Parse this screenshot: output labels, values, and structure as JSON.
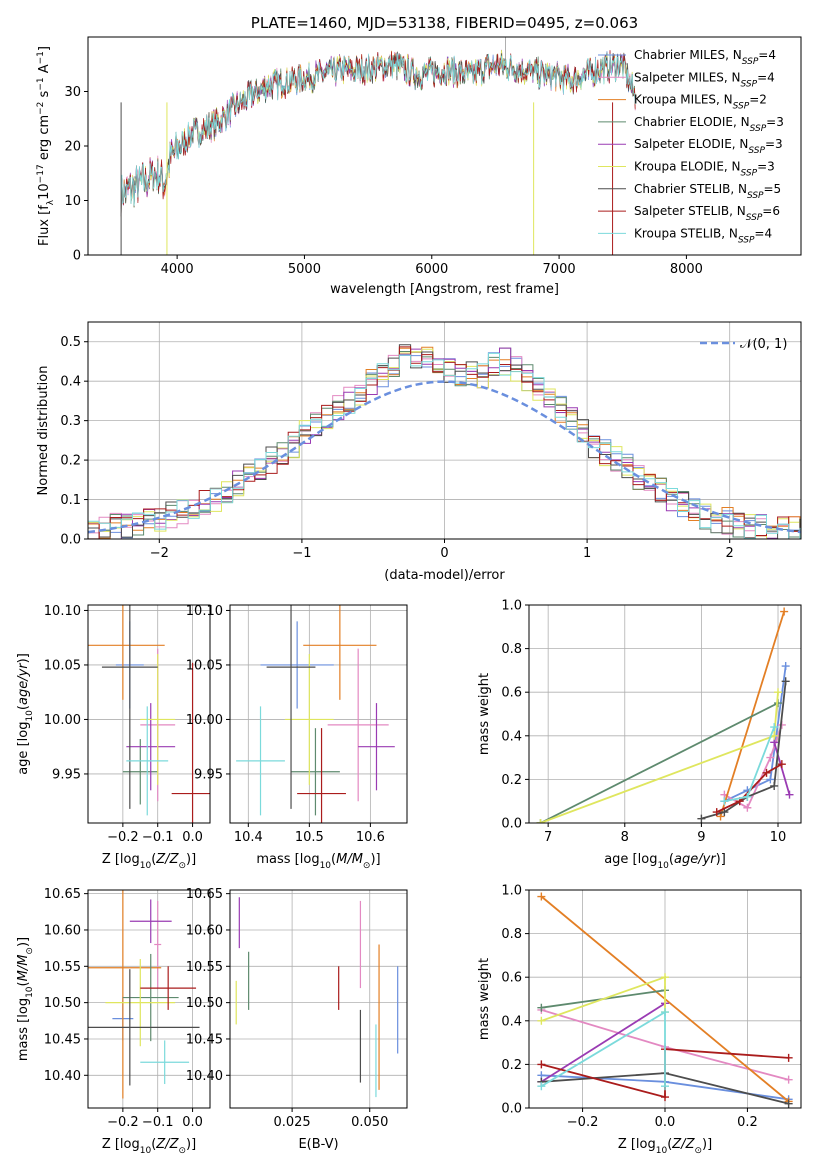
{
  "colors": [
    "#6a8fde",
    "#e389c2",
    "#e37f25",
    "#5e8a6e",
    "#9a3bb3",
    "#dfe65e",
    "#4d4d4d",
    "#aa1c1c",
    "#7bdadb"
  ],
  "chart_data": [
    {
      "type": "line",
      "title": "PLATE=1460, MJD=53138, FIBERID=0495, z=0.063",
      "xlabel": "wavelength [Angstrom, rest frame]",
      "ylabel": "Flux [fλ10⁻¹⁷ erg cm⁻² s⁻¹ A⁻¹]",
      "xlim": [
        3300,
        8900
      ],
      "ylim": [
        0,
        40
      ],
      "xticks": [
        4000,
        5000,
        6000,
        7000,
        8000
      ],
      "yticks": [
        0,
        10,
        20,
        30
      ],
      "legend_position": "right",
      "continuum": {
        "x": [
          3560,
          3700,
          3850,
          3900,
          3950,
          4100,
          4300,
          4500,
          4700,
          4900,
          5100,
          5300,
          5500,
          5700,
          5900,
          6100,
          6300,
          6500,
          6700,
          6900,
          7100,
          7300,
          7500,
          7600
        ],
        "y": [
          11,
          13,
          15,
          13,
          18,
          22,
          24,
          28,
          31,
          32,
          33,
          34,
          34,
          35,
          33,
          34,
          33,
          35,
          34,
          33,
          32,
          34,
          35,
          29
        ]
      },
      "series": [
        {
          "name": "Chabrier MILES, N",
          "sub": "SSP",
          "suffix": "=4"
        },
        {
          "name": "Salpeter MILES, N",
          "sub": "SSP",
          "suffix": "=4"
        },
        {
          "name": "Kroupa MILES, N",
          "sub": "SSP",
          "suffix": "=2"
        },
        {
          "name": "Chabrier ELODIE, N",
          "sub": "SSP",
          "suffix": "=3"
        },
        {
          "name": "Salpeter ELODIE, N",
          "sub": "SSP",
          "suffix": "=3"
        },
        {
          "name": "Kroupa ELODIE, N",
          "sub": "SSP",
          "suffix": "=3"
        },
        {
          "name": "Chabrier STELIB, N",
          "sub": "SSP",
          "suffix": "=5"
        },
        {
          "name": "Salpeter STELIB, N",
          "sub": "SSP",
          "suffix": "=6"
        },
        {
          "name": "Kroupa STELIB, N",
          "sub": "SSP",
          "suffix": "=4"
        }
      ]
    },
    {
      "type": "histogram",
      "xlabel": "(data-model)/error",
      "ylabel": "Normed distribution",
      "xlim": [
        -2.5,
        2.5
      ],
      "ylim": [
        0,
        0.55
      ],
      "xticks": [
        -2,
        -1,
        0,
        1,
        2
      ],
      "yticks": [
        0.0,
        0.1,
        0.2,
        0.3,
        0.4,
        0.5
      ],
      "reference_curve": {
        "name": "𝒩(0, 1)",
        "mean": 0,
        "sigma": 1
      },
      "bin_width": 0.1,
      "bin_start": -2.5,
      "envelope": [
        0.02,
        0.025,
        0.03,
        0.035,
        0.04,
        0.045,
        0.05,
        0.06,
        0.07,
        0.075,
        0.09,
        0.1,
        0.12,
        0.14,
        0.16,
        0.18,
        0.2,
        0.22,
        0.24,
        0.27,
        0.29,
        0.31,
        0.33,
        0.35,
        0.37,
        0.4,
        0.42,
        0.44,
        0.46,
        0.45,
        0.47,
        0.44,
        0.43,
        0.41,
        0.42,
        0.41,
        0.44,
        0.45,
        0.43,
        0.41,
        0.38,
        0.35,
        0.33,
        0.3,
        0.27,
        0.24,
        0.22,
        0.2,
        0.18,
        0.16,
        0.14,
        0.12,
        0.1,
        0.09,
        0.07,
        0.06,
        0.05,
        0.045,
        0.04,
        0.035,
        0.03,
        0.028,
        0.025,
        0.022,
        0.02
      ]
    },
    {
      "type": "scatter",
      "xlabel": "Z [log10(Z/Z⊙)]",
      "ylabel": "age  [log10(age/yr)]",
      "xlim": [
        -0.3,
        0.05
      ],
      "ylim": [
        9.905,
        10.105
      ],
      "xticks": [
        -0.2,
        -0.1,
        0.0
      ],
      "yticks": [
        9.95,
        10.0,
        10.05,
        10.1
      ],
      "points": [
        {
          "x": -0.18,
          "y": 10.05,
          "ex": 0.04,
          "ey": 0.04
        },
        {
          "x": -0.1,
          "y": 9.995,
          "ex": 0.05,
          "ey": 0.07
        },
        {
          "x": -0.2,
          "y": 10.068,
          "ex": 0.12,
          "ey": 0.05
        },
        {
          "x": -0.15,
          "y": 9.952,
          "ex": 0.05,
          "ey": 0.03
        },
        {
          "x": -0.12,
          "y": 9.975,
          "ex": 0.07,
          "ey": 0.04
        },
        {
          "x": -0.1,
          "y": 10.0,
          "ex": 0.05,
          "ey": 0.06
        },
        {
          "x": -0.18,
          "y": 10.048,
          "ex": 0.08,
          "ey": 0.13
        },
        {
          "x": 0.0,
          "y": 9.932,
          "ex": 0.06,
          "ey": 0.12
        },
        {
          "x": -0.13,
          "y": 9.962,
          "ex": 0.06,
          "ey": 0.05
        }
      ]
    },
    {
      "type": "scatter",
      "xlabel": "mass [log10(M/M⊙)]",
      "xlim": [
        10.37,
        10.66
      ],
      "ylim": [
        9.905,
        10.105
      ],
      "xticks": [
        10.4,
        10.5,
        10.6
      ],
      "yticks": [
        9.95,
        10.0,
        10.05,
        10.1
      ],
      "points": [
        {
          "x": 10.48,
          "y": 10.05,
          "ex": 0.06,
          "ey": 0.04
        },
        {
          "x": 10.58,
          "y": 9.995,
          "ex": 0.05,
          "ey": 0.07
        },
        {
          "x": 10.55,
          "y": 10.068,
          "ex": 0.06,
          "ey": 0.05
        },
        {
          "x": 10.51,
          "y": 9.952,
          "ex": 0.04,
          "ey": 0.04
        },
        {
          "x": 10.61,
          "y": 9.975,
          "ex": 0.03,
          "ey": 0.04
        },
        {
          "x": 10.5,
          "y": 10.0,
          "ex": 0.04,
          "ey": 0.06
        },
        {
          "x": 10.47,
          "y": 10.048,
          "ex": 0.04,
          "ey": 0.13
        },
        {
          "x": 10.52,
          "y": 9.932,
          "ex": 0.04,
          "ey": 0.06
        },
        {
          "x": 10.42,
          "y": 9.962,
          "ex": 0.04,
          "ey": 0.05
        }
      ]
    },
    {
      "type": "line",
      "xlabel": "age  [log10(age/yr)]",
      "ylabel": "mass weight",
      "xlim": [
        6.75,
        10.3
      ],
      "ylim": [
        0,
        1.0
      ],
      "xticks": [
        7,
        8,
        9,
        10
      ],
      "yticks": [
        0.0,
        0.2,
        0.4,
        0.6,
        0.8,
        1.0
      ],
      "series": [
        {
          "x": [
            9.3,
            9.6,
            9.9,
            10.1
          ],
          "y": [
            0.1,
            0.15,
            0.2,
            0.72
          ]
        },
        {
          "x": [
            9.3,
            9.6,
            9.9,
            10.05
          ],
          "y": [
            0.13,
            0.07,
            0.3,
            0.45
          ]
        },
        {
          "x": [
            9.25,
            10.08
          ],
          "y": [
            0.03,
            0.97
          ]
        },
        {
          "x": [
            6.9,
            10.0
          ],
          "y": [
            0.0,
            0.55
          ]
        },
        {
          "x": [
            9.95,
            10.15
          ],
          "y": [
            0.37,
            0.13
          ]
        },
        {
          "x": [
            6.9,
            9.95,
            10.0
          ],
          "y": [
            0.0,
            0.4,
            0.6
          ]
        },
        {
          "x": [
            9.0,
            9.3,
            9.6,
            9.95,
            10.1
          ],
          "y": [
            0.02,
            0.05,
            0.12,
            0.17,
            0.65
          ]
        },
        {
          "x": [
            9.2,
            9.5,
            9.85,
            10.05
          ],
          "y": [
            0.05,
            0.1,
            0.23,
            0.27
          ]
        },
        {
          "x": [
            9.3,
            9.6,
            9.95
          ],
          "y": [
            0.1,
            0.12,
            0.44
          ]
        }
      ]
    },
    {
      "type": "scatter",
      "xlabel": "Z [log10(Z/Z⊙)]",
      "ylabel": "mass [log10(M/M⊙)]",
      "xlim": [
        -0.3,
        0.05
      ],
      "ylim": [
        10.355,
        10.655
      ],
      "xticks": [
        -0.2,
        -0.1,
        0.0
      ],
      "yticks": [
        10.4,
        10.45,
        10.5,
        10.55,
        10.6,
        10.65
      ],
      "points": [
        {
          "x": -0.2,
          "y": 10.478,
          "ex": 0.03,
          "ey": 0.03
        },
        {
          "x": -0.1,
          "y": 10.58,
          "ex": 0.01,
          "ey": 0.06
        },
        {
          "x": -0.2,
          "y": 10.548,
          "ex": 0.11,
          "ey": 0.18
        },
        {
          "x": -0.12,
          "y": 10.507,
          "ex": 0.08,
          "ey": 0.06
        },
        {
          "x": -0.12,
          "y": 10.612,
          "ex": 0.06,
          "ey": 0.03
        },
        {
          "x": -0.15,
          "y": 10.5,
          "ex": 0.1,
          "ey": 0.06
        },
        {
          "x": -0.18,
          "y": 10.466,
          "ex": 0.2,
          "ey": 0.08
        },
        {
          "x": -0.07,
          "y": 10.52,
          "ex": 0.08,
          "ey": 0.03
        },
        {
          "x": -0.08,
          "y": 10.418,
          "ex": 0.07,
          "ey": 0.03
        }
      ]
    },
    {
      "type": "scatter",
      "xlabel": "E(B-V)",
      "xlim": [
        0.005,
        0.062
      ],
      "ylim": [
        10.355,
        10.655
      ],
      "xticks": [
        0.025,
        0.05
      ],
      "yticks": [
        10.4,
        10.45,
        10.5,
        10.55,
        10.6,
        10.65
      ],
      "points": [
        {
          "x": 0.059,
          "y": 10.49,
          "ey": 0.06
        },
        {
          "x": 0.047,
          "y": 10.58,
          "ey": 0.06
        },
        {
          "x": 0.053,
          "y": 10.48,
          "ey": 0.1
        },
        {
          "x": 0.011,
          "y": 10.53,
          "ey": 0.04
        },
        {
          "x": 0.008,
          "y": 10.61,
          "ey": 0.035
        },
        {
          "x": 0.007,
          "y": 10.5,
          "ey": 0.03
        },
        {
          "x": 0.047,
          "y": 10.44,
          "ey": 0.05
        },
        {
          "x": 0.04,
          "y": 10.52,
          "ey": 0.03
        },
        {
          "x": 0.052,
          "y": 10.42,
          "ey": 0.05
        }
      ]
    },
    {
      "type": "line",
      "xlabel": "Z [log10(Z/Z⊙)]",
      "ylabel": "mass weight",
      "xlim": [
        -0.33,
        0.33
      ],
      "ylim": [
        0,
        1.0
      ],
      "xticks": [
        -0.2,
        0.0,
        0.2
      ],
      "yticks": [
        0.0,
        0.2,
        0.4,
        0.6,
        0.8,
        1.0
      ],
      "series": [
        {
          "x": [
            -0.3,
            0.0,
            0.3
          ],
          "y": [
            0.15,
            0.12,
            0.04
          ]
        },
        {
          "x": [
            -0.3,
            0.0,
            0.3
          ],
          "y": [
            0.45,
            0.28,
            0.13
          ]
        },
        {
          "x": [
            -0.3,
            0.3
          ],
          "y": [
            0.97,
            0.03
          ]
        },
        {
          "x": [
            -0.3,
            0.0
          ],
          "y": [
            0.46,
            0.54
          ]
        },
        {
          "x": [
            -0.3,
            0.0
          ],
          "y": [
            0.12,
            0.48
          ]
        },
        {
          "x": [
            -0.3,
            0.0,
            0.0
          ],
          "y": [
            0.4,
            0.6,
            0.44
          ]
        },
        {
          "x": [
            -0.3,
            0.0,
            0.3
          ],
          "y": [
            0.12,
            0.16,
            0.02
          ]
        },
        {
          "x": [
            -0.3,
            0.0,
            0.0,
            0.3
          ],
          "y": [
            0.2,
            0.05,
            0.27,
            0.23
          ]
        },
        {
          "x": [
            -0.3,
            0.0,
            0.0
          ],
          "y": [
            0.1,
            0.44,
            0.1
          ]
        }
      ]
    }
  ]
}
